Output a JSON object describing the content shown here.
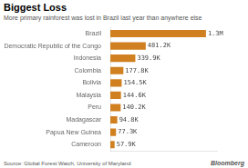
{
  "chart_data": {
    "type": "bar",
    "orientation": "horizontal",
    "title": "Biggest Loss",
    "subtitle": "More primary rainforest was lost in Brazil last year than anywhere else",
    "annotations": [
      "Source: Global Forest Watch, University of Maryland",
      "Bloomberg"
    ],
    "categories": [
      "Cameroon",
      "Papua New Guinea",
      "Madagascar",
      "Peru",
      "Malaysia",
      "Bolivia",
      "Colombia",
      "Indonesia",
      "Democratic Republic of the Congo",
      "Brazil"
    ],
    "values": [
      57.9,
      77.3,
      94.8,
      140.2,
      144.6,
      154.5,
      177.8,
      339.9,
      481.2,
      1300
    ],
    "value_labels": [
      "57.9K",
      "77.3K",
      "94.8K",
      "140.2K",
      "144.6K",
      "154.5K",
      "177.8K",
      "339.9K",
      "481.2K",
      "1.3M"
    ],
    "color": "#D08020",
    "xlim": [
      0,
      1450
    ],
    "grid": false,
    "tick_labels": "y",
    "data_labels": true
  }
}
